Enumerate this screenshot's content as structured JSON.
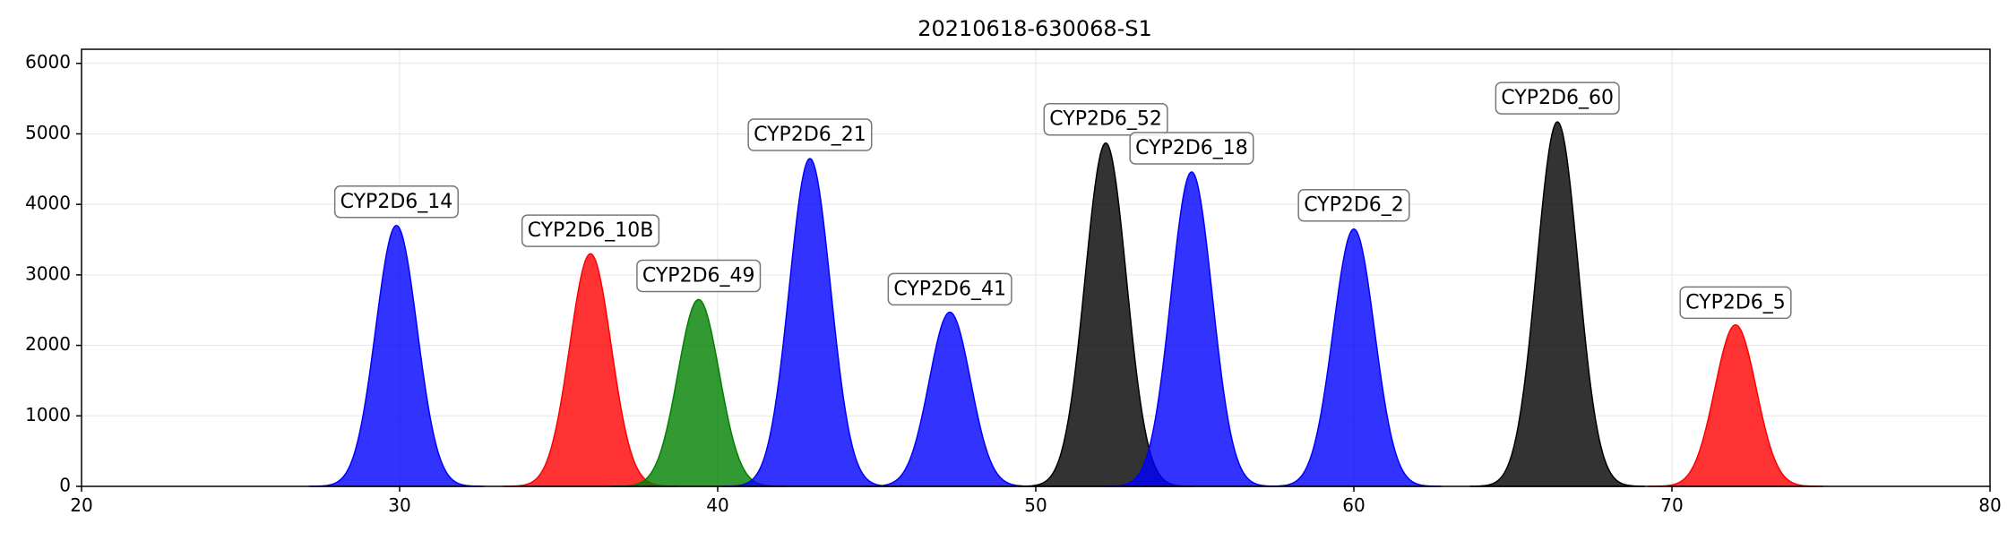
{
  "chart_data": {
    "type": "area",
    "title": "20210618-630068-S1",
    "xlabel": "",
    "ylabel": "",
    "xlim": [
      20,
      80
    ],
    "ylim": [
      0,
      6200
    ],
    "x_ticks": [
      20,
      30,
      40,
      50,
      60,
      70,
      80
    ],
    "y_ticks": [
      0,
      1000,
      2000,
      3000,
      4000,
      5000,
      6000
    ],
    "grid": true,
    "legend": "none",
    "series": [
      {
        "label": "CYP2D6_14",
        "center": 29.9,
        "height": 3700,
        "sigma": 0.65,
        "color": "#0000ff",
        "label_x": 29.9,
        "label_y": 4030
      },
      {
        "label": "CYP2D6_10B",
        "center": 36.0,
        "height": 3300,
        "sigma": 0.65,
        "color": "#ff0000",
        "label_x": 36.0,
        "label_y": 3620
      },
      {
        "label": "CYP2D6_49",
        "center": 39.4,
        "height": 2650,
        "sigma": 0.65,
        "color": "#008000",
        "label_x": 39.4,
        "label_y": 2980
      },
      {
        "label": "CYP2D6_21",
        "center": 42.9,
        "height": 4650,
        "sigma": 0.65,
        "color": "#0000ff",
        "label_x": 42.9,
        "label_y": 4980
      },
      {
        "label": "CYP2D6_41",
        "center": 47.3,
        "height": 2470,
        "sigma": 0.65,
        "color": "#0000ff",
        "label_x": 47.3,
        "label_y": 2790
      },
      {
        "label": "CYP2D6_52",
        "center": 52.2,
        "height": 4870,
        "sigma": 0.65,
        "color": "#000000",
        "label_x": 52.2,
        "label_y": 5200
      },
      {
        "label": "CYP2D6_18",
        "center": 54.9,
        "height": 4460,
        "sigma": 0.65,
        "color": "#0000ff",
        "label_x": 54.9,
        "label_y": 4790
      },
      {
        "label": "CYP2D6_2",
        "center": 60.0,
        "height": 3650,
        "sigma": 0.65,
        "color": "#0000ff",
        "label_x": 60.0,
        "label_y": 3980
      },
      {
        "label": "CYP2D6_60",
        "center": 66.4,
        "height": 5170,
        "sigma": 0.65,
        "color": "#000000",
        "label_x": 66.4,
        "label_y": 5500
      },
      {
        "label": "CYP2D6_5",
        "center": 72.0,
        "height": 2290,
        "sigma": 0.65,
        "color": "#ff0000",
        "label_x": 72.0,
        "label_y": 2600
      }
    ]
  }
}
